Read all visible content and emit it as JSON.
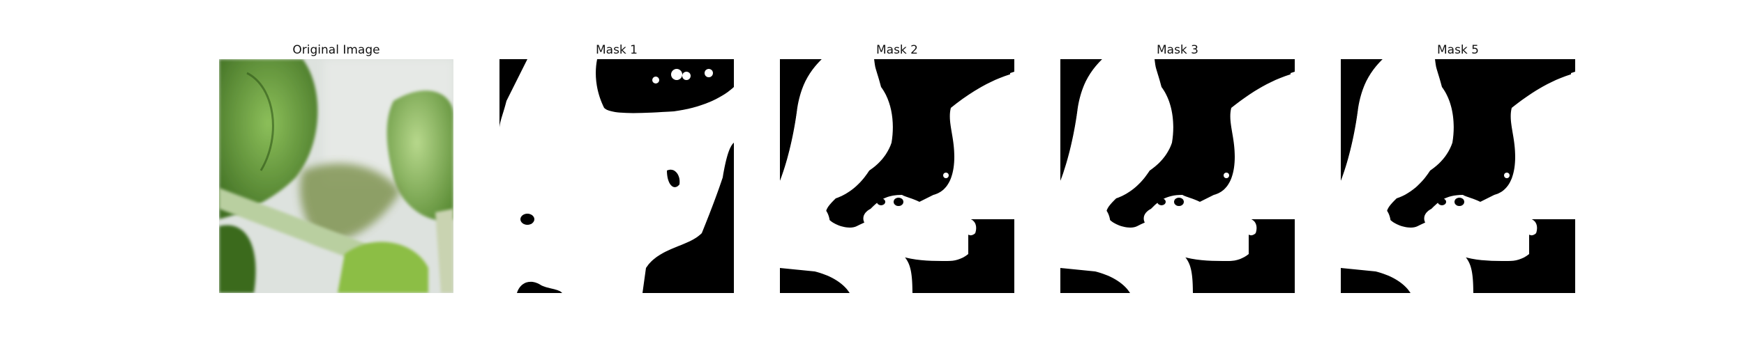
{
  "panels": [
    {
      "title": "Original Image"
    },
    {
      "title": "Mask 1"
    },
    {
      "title": "Mask 2"
    },
    {
      "title": "Mask 3"
    },
    {
      "title": "Mask 5"
    }
  ],
  "colors": {
    "mask_foreground": "#ffffff",
    "mask_background": "#000000",
    "leaf_dark": "#3d6b1e",
    "leaf_mid": "#6fa14a",
    "leaf_light": "#a9c98a",
    "background_blur": "#dfe3e0"
  }
}
